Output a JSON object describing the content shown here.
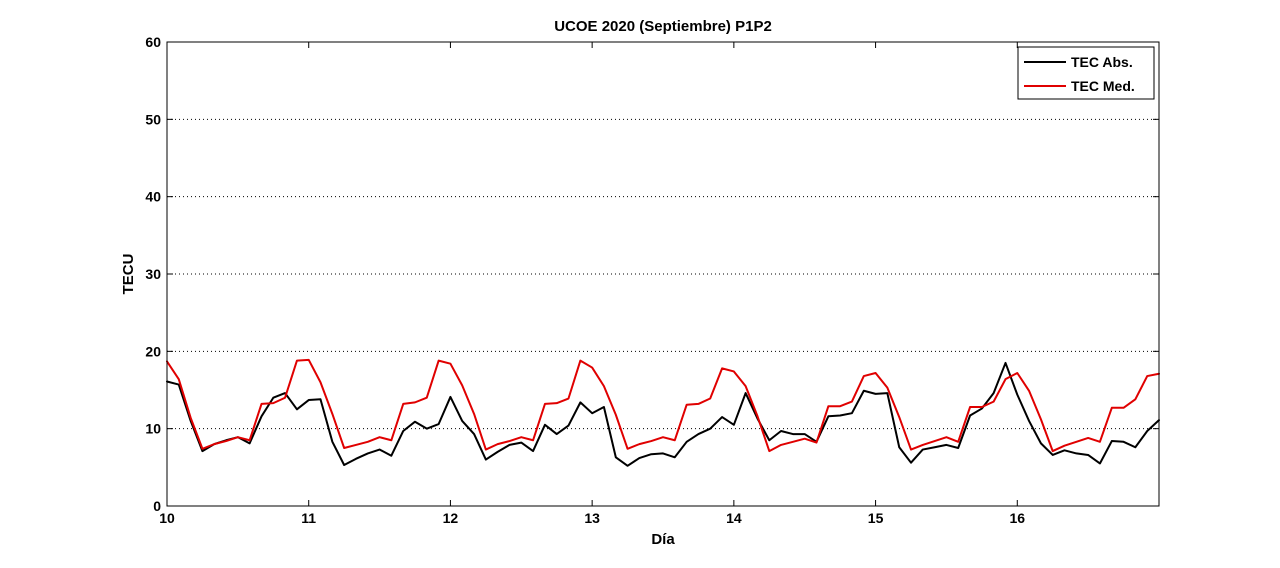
{
  "chart_data": {
    "type": "line",
    "title": "UCOE 2020 (Septiembre) P1P2",
    "xlabel": "Día",
    "ylabel": "TECU",
    "xlim": [
      10,
      17
    ],
    "ylim": [
      0,
      60
    ],
    "xticks": [
      10,
      11,
      12,
      13,
      14,
      15,
      16
    ],
    "yticks": [
      0,
      10,
      20,
      30,
      40,
      50,
      60
    ],
    "grid": "horizontal dotted",
    "legend_position": "top-right",
    "x": [
      10.0,
      10.083,
      10.167,
      10.25,
      10.333,
      10.417,
      10.5,
      10.583,
      10.667,
      10.75,
      10.833,
      10.917,
      11.0,
      11.083,
      11.167,
      11.25,
      11.333,
      11.417,
      11.5,
      11.583,
      11.667,
      11.75,
      11.833,
      11.917,
      12.0,
      12.083,
      12.167,
      12.25,
      12.333,
      12.417,
      12.5,
      12.583,
      12.667,
      12.75,
      12.833,
      12.917,
      13.0,
      13.083,
      13.167,
      13.25,
      13.333,
      13.417,
      13.5,
      13.583,
      13.667,
      13.75,
      13.833,
      13.917,
      14.0,
      14.083,
      14.167,
      14.25,
      14.333,
      14.417,
      14.5,
      14.583,
      14.667,
      14.75,
      14.833,
      14.917,
      15.0,
      15.083,
      15.167,
      15.25,
      15.333,
      15.417,
      15.5,
      15.583,
      15.667,
      15.75,
      15.833,
      15.917,
      16.0,
      16.083,
      16.167,
      16.25,
      16.333,
      16.417,
      16.5,
      16.583,
      16.667,
      16.75,
      16.833,
      16.917,
      17.0
    ],
    "series": [
      {
        "name": "TEC Abs.",
        "color": "#000000",
        "values": [
          16.1,
          15.7,
          11.0,
          7.1,
          8.0,
          8.5,
          8.9,
          8.1,
          11.6,
          14.0,
          14.6,
          12.5,
          13.7,
          13.8,
          8.3,
          5.3,
          6.1,
          6.8,
          7.3,
          6.5,
          9.7,
          10.9,
          10.0,
          10.6,
          14.1,
          11.0,
          9.3,
          6.0,
          7.0,
          7.9,
          8.2,
          7.1,
          10.5,
          9.3,
          10.4,
          13.4,
          12.0,
          12.8,
          6.3,
          5.2,
          6.2,
          6.7,
          6.8,
          6.3,
          8.3,
          9.3,
          10.0,
          11.5,
          10.5,
          14.6,
          11.3,
          8.5,
          9.7,
          9.3,
          9.3,
          8.3,
          11.6,
          11.7,
          12.0,
          14.9,
          14.5,
          14.6,
          7.6,
          5.6,
          7.3,
          7.6,
          7.9,
          7.5,
          11.7,
          12.6,
          14.6,
          18.5,
          14.4,
          11.0,
          8.1,
          6.6,
          7.2,
          6.8,
          6.6,
          5.5,
          8.4,
          8.3,
          7.6,
          9.7,
          11.1
        ]
      },
      {
        "name": "TEC Med.",
        "color": "#e00000",
        "values": [
          18.7,
          16.4,
          11.4,
          7.4,
          8.0,
          8.4,
          8.9,
          8.5,
          13.2,
          13.3,
          14.0,
          18.8,
          18.9,
          16.0,
          11.9,
          7.5,
          7.9,
          8.3,
          8.9,
          8.5,
          13.2,
          13.4,
          14.0,
          18.8,
          18.4,
          15.6,
          11.9,
          7.3,
          8.0,
          8.4,
          8.9,
          8.5,
          13.2,
          13.3,
          13.9,
          18.8,
          17.9,
          15.5,
          11.8,
          7.4,
          8.0,
          8.4,
          8.9,
          8.5,
          13.1,
          13.2,
          13.9,
          17.8,
          17.4,
          15.5,
          11.6,
          7.1,
          7.9,
          8.3,
          8.7,
          8.2,
          12.9,
          12.9,
          13.5,
          16.8,
          17.2,
          15.3,
          11.5,
          7.3,
          7.9,
          8.4,
          8.9,
          8.3,
          12.8,
          12.8,
          13.5,
          16.4,
          17.2,
          14.9,
          11.2,
          7.1,
          7.8,
          8.3,
          8.8,
          8.3,
          12.7,
          12.7,
          13.8,
          16.8,
          17.1
        ]
      }
    ]
  }
}
